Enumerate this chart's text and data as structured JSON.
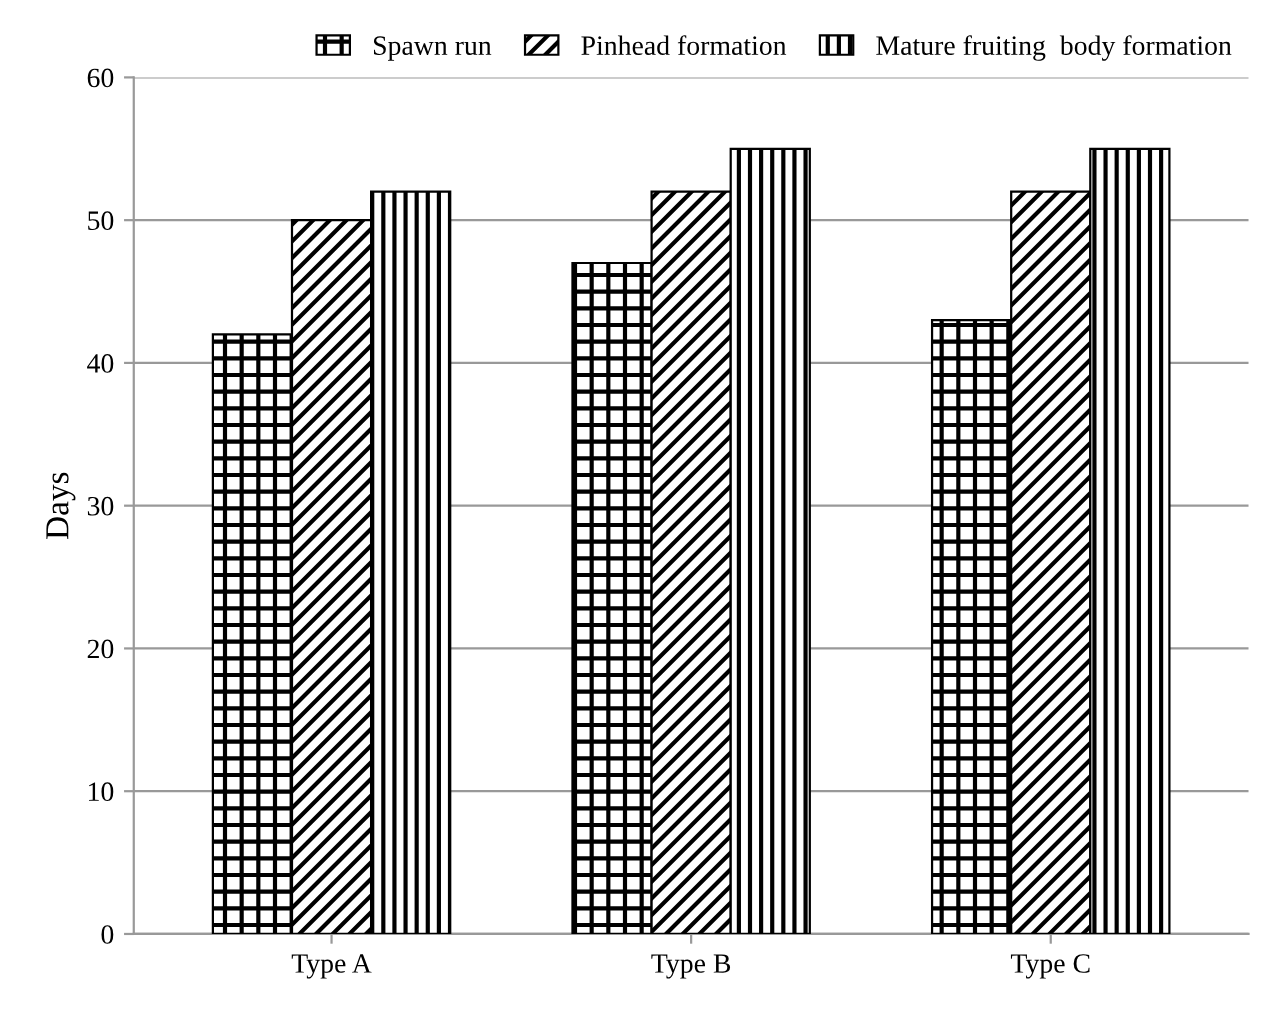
{
  "chart_data": {
    "type": "bar",
    "ylabel": "Days",
    "categories": [
      "Type A",
      "Type B",
      "Type C"
    ],
    "series": [
      {
        "name": "Spawn run",
        "color": "#000000",
        "values": [
          42,
          47,
          43
        ]
      },
      {
        "name": "Pinhead formation",
        "color": "#000000",
        "values": [
          50,
          52,
          52
        ]
      },
      {
        "name": "Mature fruiting  body formation",
        "color": "#000000",
        "values": [
          52,
          55,
          55
        ]
      }
    ],
    "ylim": [
      0,
      60
    ],
    "yticks": [
      0,
      10,
      20,
      30,
      40,
      50,
      60
    ],
    "grid": "y",
    "legend": "top right"
  }
}
